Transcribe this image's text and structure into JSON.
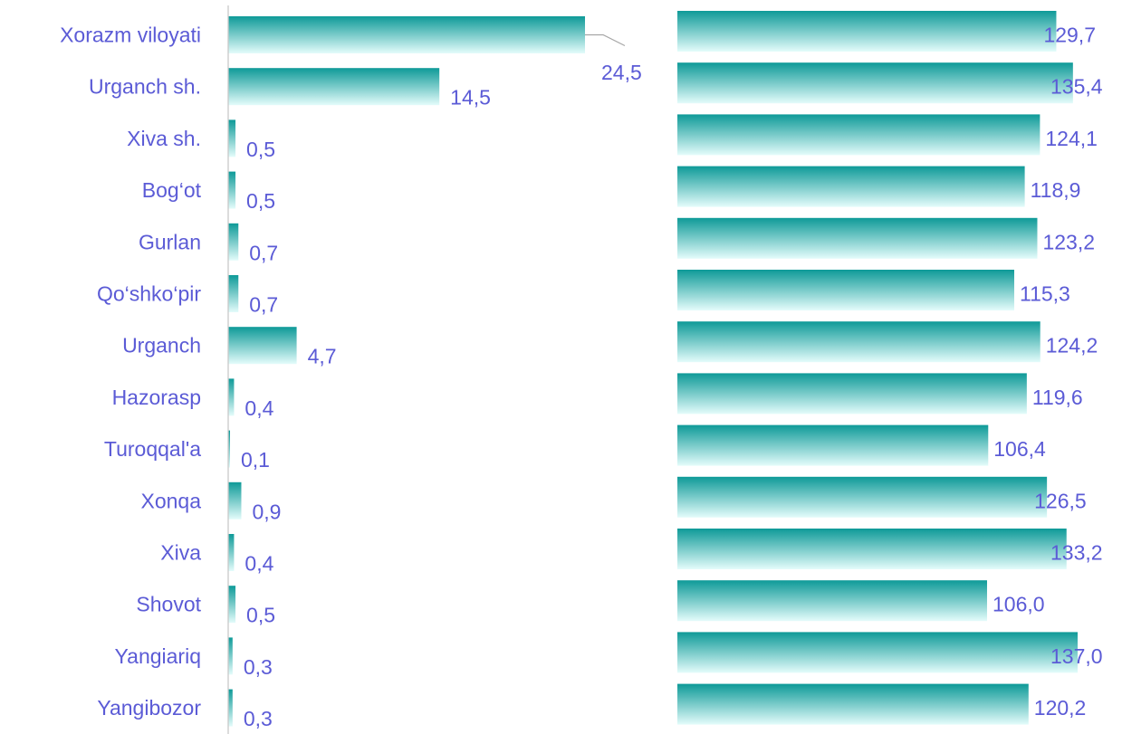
{
  "colors": {
    "label": "#5b5bd6",
    "bar_top": "#0e9a98",
    "bar_bottom": "#e4fcfb",
    "axis": "#c8c8c8",
    "leader": "#a6a6a6"
  },
  "chart_data": [
    {
      "type": "bar",
      "orientation": "horizontal",
      "categories": [
        "Xorazm viloyati",
        "Urganch sh.",
        "Xiva sh.",
        "Bog‘ot",
        "Gurlan",
        "Qo‘shko‘pir",
        "Urganch",
        "Hazorasp",
        "Turoqqal'a",
        "Xonqa",
        "Xiva",
        "Shovot",
        "Yangiariq",
        "Yangibozor"
      ],
      "values": [
        24.5,
        14.5,
        0.5,
        0.5,
        0.7,
        0.7,
        4.7,
        0.4,
        0.1,
        0.9,
        0.4,
        0.5,
        0.3,
        0.3
      ],
      "value_labels": [
        "24,5",
        "14,5",
        "0,5",
        "0,5",
        "0,7",
        "0,7",
        "4,7",
        "0,4",
        "0,1",
        "0,9",
        "0,4",
        "0,5",
        "0,3",
        "0,3"
      ],
      "xlim": [
        0,
        24.5
      ],
      "grid": false,
      "legend": "none"
    },
    {
      "type": "bar",
      "orientation": "horizontal",
      "categories": [
        "Xorazm viloyati",
        "Urganch sh.",
        "Xiva sh.",
        "Bog‘ot",
        "Gurlan",
        "Qo‘shko‘pir",
        "Urganch",
        "Hazorasp",
        "Turoqqal'a",
        "Xonqa",
        "Xiva",
        "Shovot",
        "Yangiariq",
        "Yangibozor"
      ],
      "values": [
        129.7,
        135.4,
        124.1,
        118.9,
        123.2,
        115.3,
        124.2,
        119.6,
        106.4,
        126.5,
        133.2,
        106.0,
        137.0,
        120.2
      ],
      "value_labels": [
        "129,7",
        "135,4",
        "124,1",
        "118,9",
        "123,2",
        "115,3",
        "124,2",
        "119,6",
        "106,4",
        "126,5",
        "133,2",
        "106,0",
        "137,0",
        "120,2"
      ],
      "xlim": [
        0,
        137.0
      ],
      "grid": false,
      "legend": "none"
    }
  ]
}
